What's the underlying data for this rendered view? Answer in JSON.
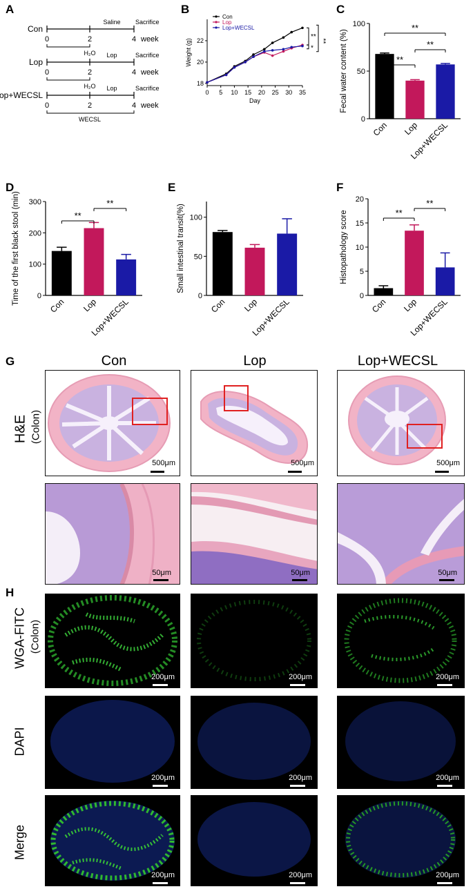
{
  "panels": {
    "A": "A",
    "B": "B",
    "C": "C",
    "D": "D",
    "E": "E",
    "F": "F",
    "G": "G",
    "H": "H"
  },
  "schematic": {
    "groups": [
      {
        "name": "Con",
        "start": "0",
        "mid": "2",
        "end": "4",
        "unit": "week",
        "seg2": "Saline",
        "end_label": "Sacrifice",
        "under_label": "H₂O"
      },
      {
        "name": "Lop",
        "start": "0",
        "mid": "2",
        "end": "4",
        "unit": "week",
        "seg2": "Lop",
        "end_label": "Sacrifice",
        "under_label": "H₂O"
      },
      {
        "name": "Lop+WECSL",
        "start": "0",
        "mid": "2",
        "end": "4",
        "unit": "week",
        "seg2": "Lop",
        "end_label": "Sacrifice",
        "under_label": "WECSL"
      }
    ]
  },
  "chart_data": [
    {
      "id": "B",
      "type": "line",
      "xlabel": "Day",
      "ylabel": "Weight (g)",
      "x": [
        0,
        7,
        10,
        14,
        17,
        21,
        24,
        28,
        31,
        35
      ],
      "xticks": [
        0,
        5,
        10,
        15,
        20,
        25,
        30,
        35
      ],
      "yticks": [
        18,
        20,
        22
      ],
      "ylim": [
        17.8,
        24
      ],
      "series": [
        {
          "name": "Con",
          "color": "#000000",
          "values": [
            18.1,
            18.9,
            19.6,
            20.1,
            20.7,
            21.2,
            21.8,
            22.3,
            22.8,
            23.2
          ]
        },
        {
          "name": "Lop",
          "color": "#c2185b",
          "values": [
            18.1,
            18.8,
            19.5,
            20.0,
            20.5,
            20.9,
            20.6,
            21.0,
            21.3,
            21.6
          ]
        },
        {
          "name": "Lop+WECSL",
          "color": "#1a1aa6",
          "values": [
            18.1,
            18.8,
            19.5,
            20.0,
            20.5,
            21.0,
            21.1,
            21.2,
            21.4,
            21.5
          ]
        }
      ],
      "sig": [
        "**",
        "*",
        "**"
      ]
    },
    {
      "id": "C",
      "type": "bar",
      "ylabel": "Fecal water content (%)",
      "categories": [
        "Con",
        "Lop",
        "Lop+WECSL"
      ],
      "values": [
        68,
        40,
        57
      ],
      "errors": [
        1,
        1,
        1
      ],
      "colors": [
        "#000000",
        "#c2185b",
        "#1a1aa6"
      ],
      "ylim": [
        0,
        100
      ],
      "yticks": [
        0,
        50,
        100
      ],
      "sig": [
        {
          "from": 0,
          "to": 1,
          "label": "**"
        },
        {
          "from": 1,
          "to": 2,
          "label": "**"
        },
        {
          "from": 0,
          "to": 2,
          "label": "**"
        }
      ]
    },
    {
      "id": "D",
      "type": "bar",
      "ylabel": "Time of the first black stool (min)",
      "categories": [
        "Con",
        "Lop",
        "Lop+WECSL"
      ],
      "values": [
        142,
        215,
        115
      ],
      "errors": [
        12,
        18,
        16
      ],
      "colors": [
        "#000000",
        "#c2185b",
        "#1a1aa6"
      ],
      "ylim": [
        0,
        300
      ],
      "yticks": [
        0,
        100,
        200,
        300
      ],
      "sig": [
        {
          "from": 0,
          "to": 1,
          "label": "**"
        },
        {
          "from": 1,
          "to": 2,
          "label": "**"
        }
      ]
    },
    {
      "id": "E",
      "type": "bar",
      "ylabel": "Small intestinal transit(%)",
      "categories": [
        "Con",
        "Lop",
        "Lop+WECSL"
      ],
      "values": [
        81,
        61,
        79
      ],
      "errors": [
        2,
        4,
        19
      ],
      "colors": [
        "#000000",
        "#c2185b",
        "#1a1aa6"
      ],
      "ylim": [
        0,
        120
      ],
      "yticks": [
        0,
        50,
        100
      ],
      "sig": []
    },
    {
      "id": "F",
      "type": "bar",
      "ylabel": "Histopathology score",
      "categories": [
        "Con",
        "Lop",
        "Lop+WECSL"
      ],
      "values": [
        1.5,
        13.4,
        5.8
      ],
      "errors": [
        0.5,
        1.2,
        3.0
      ],
      "colors": [
        "#000000",
        "#c2185b",
        "#1a1aa6"
      ],
      "ylim": [
        0,
        20
      ],
      "yticks": [
        0,
        5,
        10,
        15,
        20
      ],
      "sig": [
        {
          "from": 0,
          "to": 1,
          "label": "**"
        },
        {
          "from": 1,
          "to": 2,
          "label": "**"
        }
      ]
    }
  ],
  "histology": {
    "columns": [
      "Con",
      "Lop",
      "Lop+WECSL"
    ],
    "row_he": "H&E",
    "row_he_sub": "(Colon)",
    "scale_low": "500μm",
    "scale_high": "50μm",
    "rows_fluor": [
      {
        "label": "WGA-FITC",
        "sub": "(Colon)",
        "scale": "200μm"
      },
      {
        "label": "DAPI",
        "sub": "",
        "scale": "200μm"
      },
      {
        "label": "Merge",
        "sub": "",
        "scale": "200μm"
      }
    ]
  }
}
